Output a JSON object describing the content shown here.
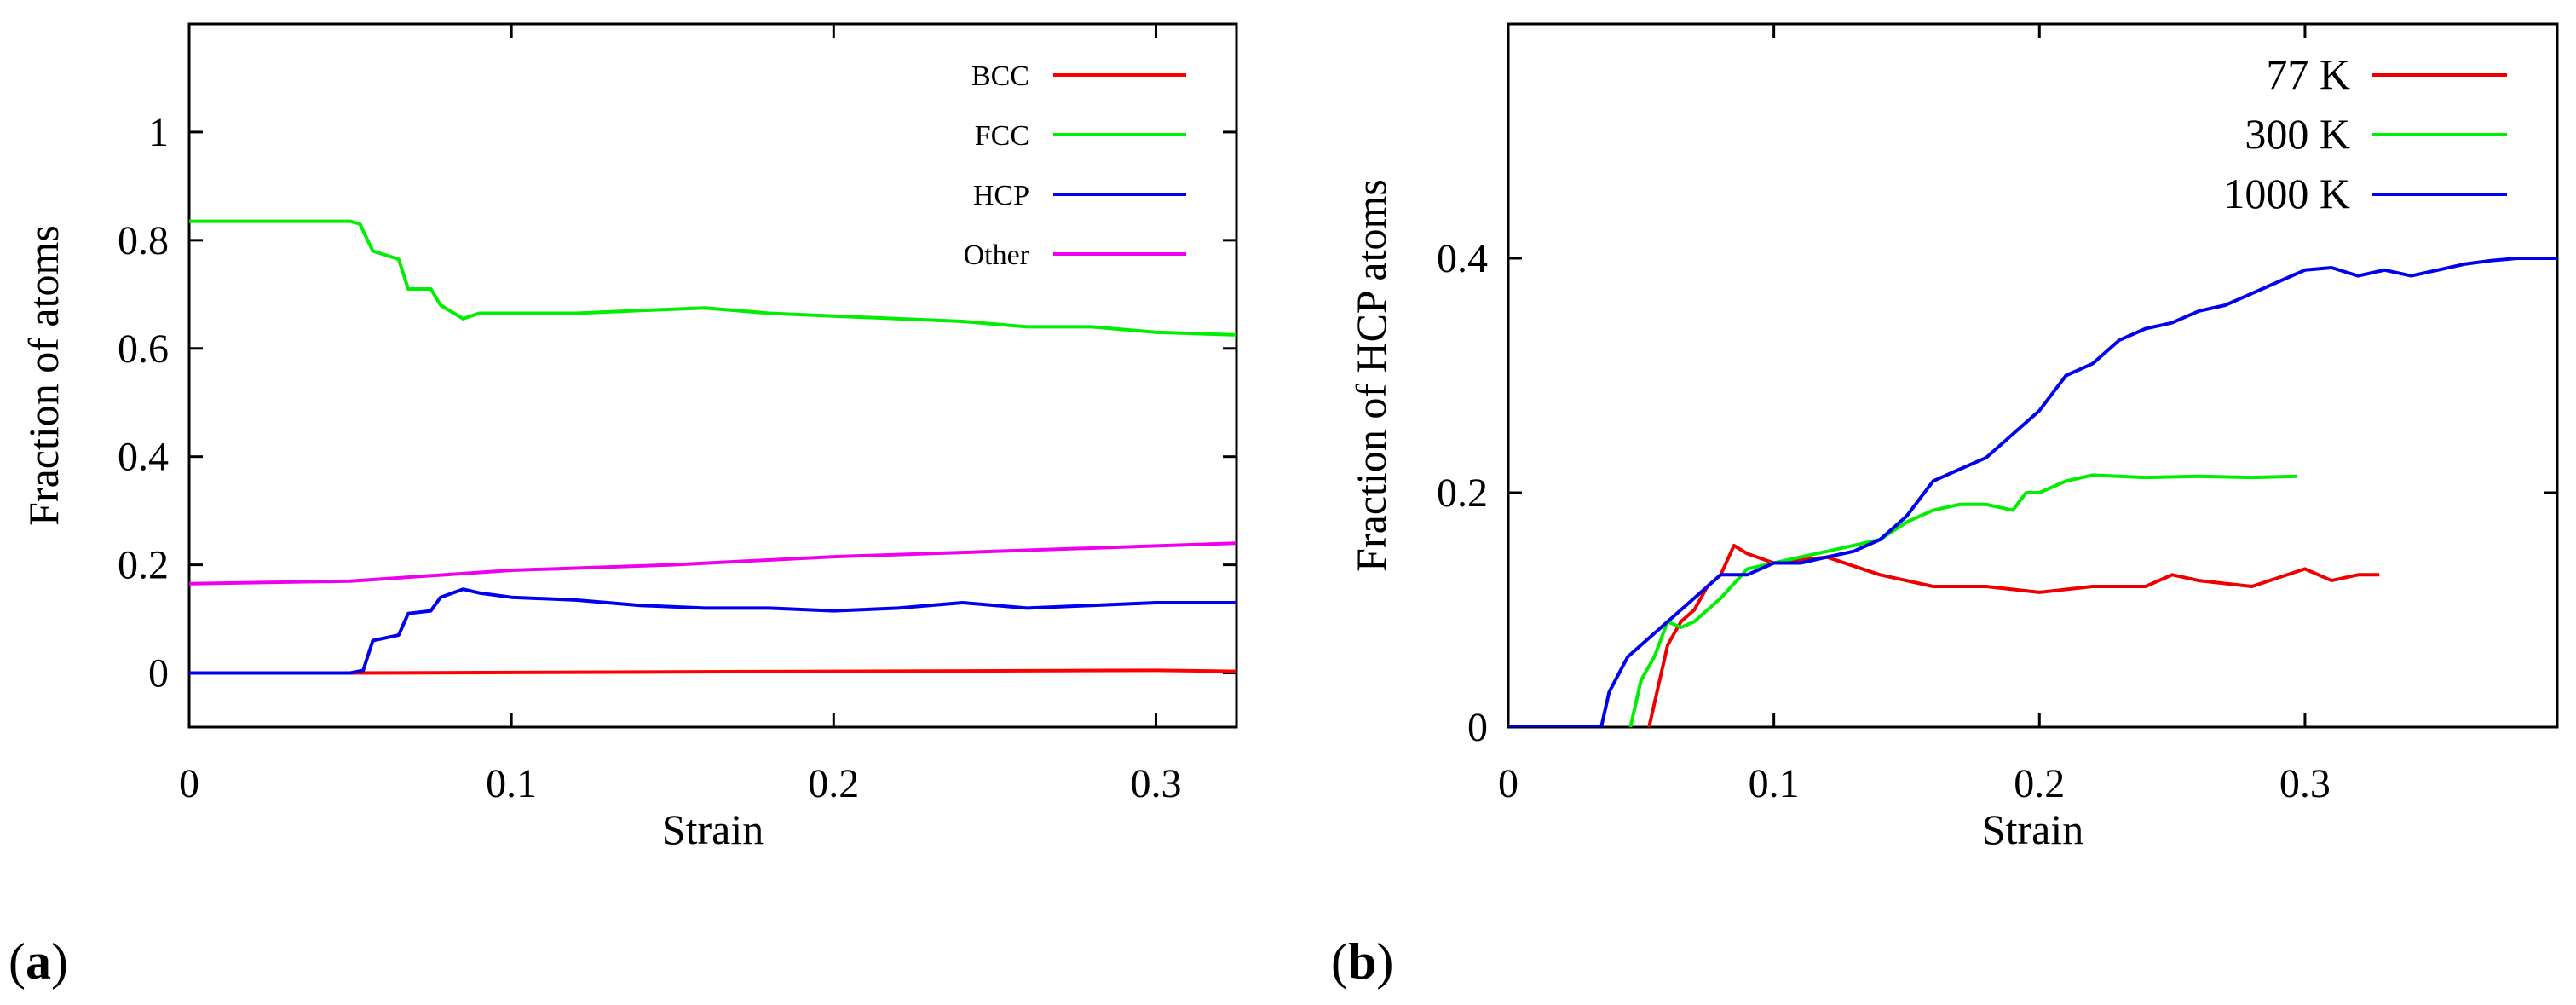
{
  "chart_data": [
    {
      "id": "a",
      "type": "line",
      "panel_label": "a",
      "xlabel": "Strain",
      "ylabel": "Fraction of atoms",
      "xlim": [
        0,
        0.325
      ],
      "ylim": [
        -0.1,
        1.2
      ],
      "xticks": [
        0,
        0.1,
        0.2,
        0.3
      ],
      "xtick_labels": [
        "0",
        "0.1",
        "0.2",
        "0.3"
      ],
      "yticks": [
        0,
        0.2,
        0.4,
        0.6,
        0.8,
        1
      ],
      "ytick_labels": [
        "0",
        "0.2",
        "0.4",
        "0.6",
        "0.8",
        "1"
      ],
      "legend_position": "top-right",
      "series": [
        {
          "name": "BCC",
          "color": "#ff0000",
          "x": [
            0,
            0.05,
            0.1,
            0.15,
            0.2,
            0.25,
            0.3,
            0.325
          ],
          "y": [
            0,
            0,
            0.001,
            0.002,
            0.003,
            0.004,
            0.005,
            0.003
          ]
        },
        {
          "name": "FCC",
          "color": "#00ee00",
          "x": [
            0,
            0.05,
            0.053,
            0.057,
            0.065,
            0.068,
            0.075,
            0.078,
            0.085,
            0.09,
            0.1,
            0.12,
            0.14,
            0.16,
            0.18,
            0.2,
            0.22,
            0.24,
            0.26,
            0.28,
            0.3,
            0.325
          ],
          "y": [
            0.835,
            0.835,
            0.83,
            0.78,
            0.765,
            0.71,
            0.71,
            0.68,
            0.655,
            0.665,
            0.665,
            0.665,
            0.67,
            0.675,
            0.665,
            0.66,
            0.655,
            0.65,
            0.64,
            0.64,
            0.63,
            0.625
          ]
        },
        {
          "name": "HCP",
          "color": "#0000ee",
          "x": [
            0,
            0.05,
            0.054,
            0.057,
            0.065,
            0.068,
            0.075,
            0.078,
            0.085,
            0.09,
            0.1,
            0.12,
            0.14,
            0.16,
            0.18,
            0.2,
            0.22,
            0.24,
            0.26,
            0.28,
            0.3,
            0.325
          ],
          "y": [
            0,
            0,
            0.005,
            0.06,
            0.07,
            0.11,
            0.115,
            0.14,
            0.155,
            0.148,
            0.14,
            0.135,
            0.125,
            0.12,
            0.12,
            0.115,
            0.12,
            0.13,
            0.12,
            0.125,
            0.13,
            0.13
          ]
        },
        {
          "name": "Other",
          "color": "#ee00ee",
          "x": [
            0,
            0.05,
            0.1,
            0.15,
            0.2,
            0.25,
            0.3,
            0.325
          ],
          "y": [
            0.165,
            0.17,
            0.19,
            0.2,
            0.215,
            0.225,
            0.235,
            0.24
          ]
        }
      ]
    },
    {
      "id": "b",
      "type": "line",
      "panel_label": "b",
      "xlabel": "Strain",
      "ylabel": "Fraction of HCP atoms",
      "xlim": [
        0,
        0.395
      ],
      "ylim": [
        0,
        0.6
      ],
      "xticks": [
        0,
        0.1,
        0.2,
        0.3
      ],
      "xtick_labels": [
        "0",
        "0.1",
        "0.2",
        "0.3"
      ],
      "yticks": [
        0,
        0.2,
        0.4
      ],
      "ytick_labels": [
        "0",
        "0.2",
        "0.4"
      ],
      "legend_position": "top-right",
      "series": [
        {
          "name": "77 K",
          "color": "#ee0000",
          "x": [
            0.053,
            0.056,
            0.06,
            0.065,
            0.07,
            0.075,
            0.08,
            0.085,
            0.09,
            0.1,
            0.12,
            0.14,
            0.16,
            0.18,
            0.2,
            0.22,
            0.24,
            0.25,
            0.26,
            0.28,
            0.3,
            0.31,
            0.32,
            0.328
          ],
          "y": [
            0,
            0.03,
            0.07,
            0.09,
            0.1,
            0.12,
            0.13,
            0.155,
            0.148,
            0.14,
            0.145,
            0.13,
            0.12,
            0.12,
            0.115,
            0.12,
            0.12,
            0.13,
            0.125,
            0.12,
            0.135,
            0.125,
            0.13,
            0.13
          ]
        },
        {
          "name": "300 K",
          "color": "#00ee00",
          "x": [
            0.046,
            0.05,
            0.055,
            0.06,
            0.065,
            0.07,
            0.08,
            0.09,
            0.1,
            0.11,
            0.12,
            0.13,
            0.14,
            0.15,
            0.16,
            0.17,
            0.18,
            0.19,
            0.195,
            0.2,
            0.21,
            0.22,
            0.24,
            0.26,
            0.28,
            0.297
          ],
          "y": [
            0,
            0.04,
            0.06,
            0.09,
            0.085,
            0.09,
            0.11,
            0.135,
            0.14,
            0.145,
            0.15,
            0.155,
            0.16,
            0.175,
            0.185,
            0.19,
            0.19,
            0.185,
            0.2,
            0.2,
            0.21,
            0.215,
            0.213,
            0.214,
            0.213,
            0.214
          ]
        },
        {
          "name": "1000 K",
          "color": "#0000ee",
          "x": [
            0,
            0.035,
            0.038,
            0.045,
            0.05,
            0.06,
            0.07,
            0.08,
            0.09,
            0.1,
            0.11,
            0.12,
            0.13,
            0.14,
            0.15,
            0.16,
            0.17,
            0.18,
            0.19,
            0.2,
            0.21,
            0.22,
            0.23,
            0.24,
            0.25,
            0.26,
            0.27,
            0.28,
            0.29,
            0.3,
            0.31,
            0.32,
            0.33,
            0.34,
            0.35,
            0.36,
            0.37,
            0.38,
            0.39,
            0.395
          ],
          "y": [
            0,
            0,
            0.03,
            0.06,
            0.07,
            0.09,
            0.11,
            0.13,
            0.13,
            0.14,
            0.14,
            0.145,
            0.15,
            0.16,
            0.18,
            0.21,
            0.22,
            0.23,
            0.25,
            0.27,
            0.3,
            0.31,
            0.33,
            0.34,
            0.345,
            0.355,
            0.36,
            0.37,
            0.38,
            0.39,
            0.392,
            0.385,
            0.39,
            0.385,
            0.39,
            0.395,
            0.398,
            0.4,
            0.4,
            0.4
          ]
        }
      ]
    }
  ]
}
